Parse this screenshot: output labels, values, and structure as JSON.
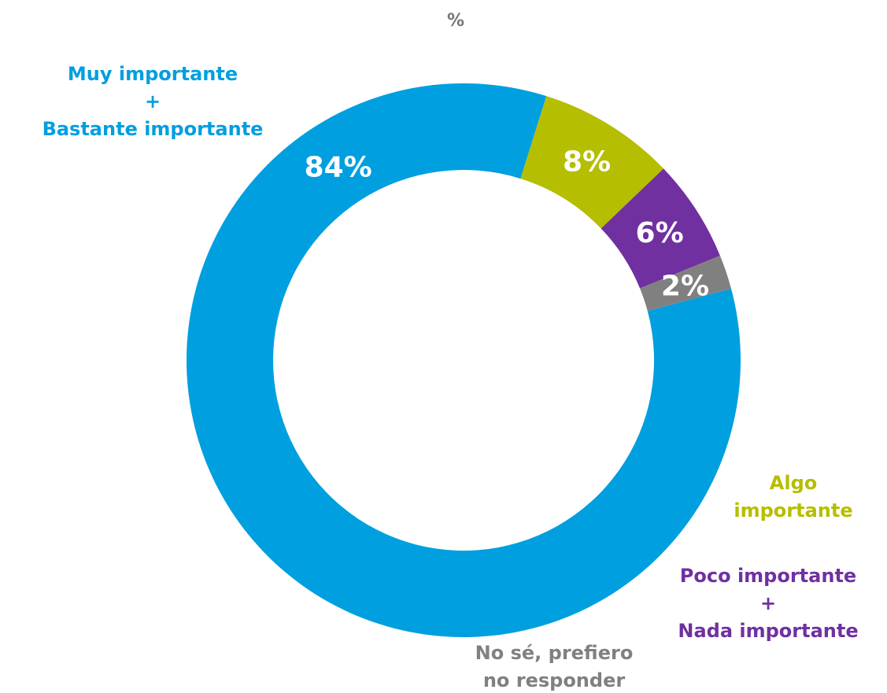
{
  "chart_data": {
    "type": "pie",
    "title": "%",
    "donut": true,
    "slices": [
      {
        "label_lines": [
          "Muy importante",
          "+",
          "Bastante importante"
        ],
        "value": 84,
        "value_label": "84%",
        "color": "#009FDF"
      },
      {
        "label_lines": [
          "Algo",
          "importante"
        ],
        "value": 8,
        "value_label": "8%",
        "color": "#B5BE00"
      },
      {
        "label_lines": [
          "Poco importante",
          "+",
          "Nada importante"
        ],
        "value": 6,
        "value_label": "6%",
        "color": "#7030A0"
      },
      {
        "label_lines": [
          "No sé, prefiero",
          "no responder"
        ],
        "value": 2,
        "value_label": "2%",
        "color": "#808080"
      }
    ]
  }
}
